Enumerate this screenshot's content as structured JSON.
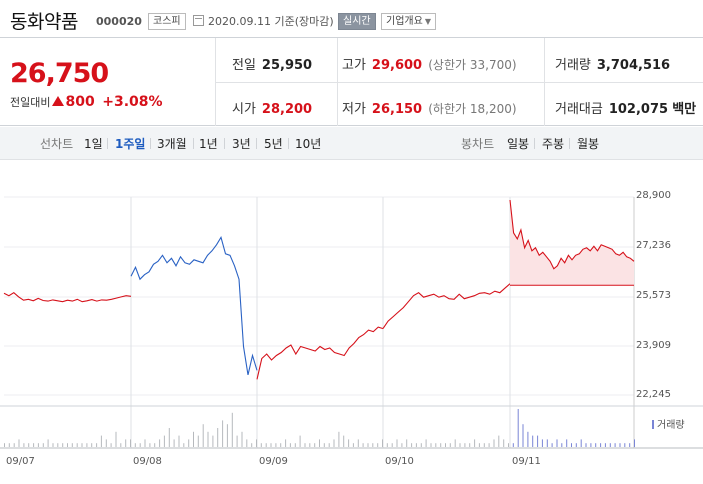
{
  "stock": {
    "name": "동화약품",
    "code": "000020",
    "market": "코스피",
    "date_text": "2020.09.11 기준(장마감)",
    "live_label": "실시간",
    "corp_label": "기업개요"
  },
  "summary": {
    "price": "26,750",
    "change_label": "전일대비",
    "change_value": "800",
    "change_pct": "+3.08%",
    "prev_label": "전일",
    "prev_value": "25,950",
    "open_label": "시가",
    "open_value": "28,200",
    "high_label": "고가",
    "high_value": "29,600",
    "upper_limit_prefix": "(상한가",
    "upper_limit_value": "33,700",
    "upper_limit_suffix": ")",
    "low_label": "저가",
    "low_value": "26,150",
    "lower_limit_prefix": "(하한가",
    "lower_limit_value": "18,200",
    "lower_limit_suffix": ")",
    "volume_label": "거래량",
    "volume_value": "3,704,516",
    "amount_label": "거래대금",
    "amount_value": "102,075",
    "amount_unit": "백만"
  },
  "tabs": {
    "line_chart_label": "선차트",
    "line_periods": [
      "1일",
      "1주일",
      "3개월",
      "1년",
      "3년",
      "5년",
      "10년"
    ],
    "active_period": "1주일",
    "candle_chart_label": "봉차트",
    "candle_periods": [
      "일봉",
      "주봉",
      "월봉"
    ]
  },
  "colors": {
    "up": "#d6111a",
    "down": "#2a62c4",
    "volume": "#7a85d6",
    "accent_tab": "#1d5bbf"
  },
  "chart_data": {
    "type": "line",
    "title": "",
    "yticks": [
      "28,900",
      "27,236",
      "25,573",
      "23,909",
      "22,245"
    ],
    "ylim": [
      22245,
      28900
    ],
    "xticks": [
      "09/07",
      "09/08",
      "09/09",
      "09/10",
      "09/11"
    ],
    "prev_close_reference": 25950,
    "volume_legend": "거래량",
    "series": [
      {
        "day": "09/07",
        "color": "up",
        "values": [
          25680,
          25600,
          25700,
          25560,
          25450,
          25480,
          25430,
          25510,
          25440,
          25420,
          25460,
          25430,
          25400,
          25450,
          25420,
          25480,
          25400,
          25430,
          25470,
          25420,
          25460,
          25450,
          25480,
          25520,
          25560,
          25600,
          25580
        ]
      },
      {
        "day": "09/08",
        "color": "down",
        "values": [
          26250,
          26550,
          26150,
          26300,
          26400,
          26650,
          26750,
          26950,
          26700,
          26850,
          26600,
          26900,
          26700,
          26650,
          26800,
          26750,
          26700,
          26950,
          27100,
          27300,
          27550,
          27000,
          26950,
          26600,
          26150,
          23900,
          22950,
          23600,
          23100
        ]
      },
      {
        "day": "09/09",
        "color": "up",
        "values": [
          22800,
          23500,
          23650,
          23450,
          23600,
          23700,
          23850,
          23950,
          23650,
          23900,
          23850,
          23800,
          23750,
          23900,
          23800,
          23850,
          23700,
          23650,
          23600,
          23850,
          24000,
          24200,
          24300,
          24450,
          24400,
          24550,
          24500
        ]
      },
      {
        "day": "09/10",
        "color": "up",
        "values": [
          24500,
          24750,
          24900,
          25050,
          25200,
          25400,
          25600,
          25700,
          25550,
          25600,
          25650,
          25550,
          25600,
          25500,
          25480,
          25650,
          25500,
          25550,
          25600,
          25680,
          25700,
          25650,
          25750,
          25700,
          25850,
          26000
        ]
      },
      {
        "day": "09/11",
        "color": "up",
        "values": [
          28800,
          27700,
          27500,
          27800,
          27200,
          27450,
          27100,
          27200,
          26950,
          27050,
          26900,
          26750,
          26500,
          26600,
          26850,
          26700,
          26950,
          26800,
          26950,
          27000,
          27150,
          27200,
          27100,
          27250,
          27100,
          27300,
          27250,
          27200,
          27150,
          27000,
          26950,
          27050,
          26900,
          26850,
          26750
        ]
      }
    ],
    "volume_levels": [
      1,
      1,
      1,
      2,
      1,
      1,
      1,
      1,
      1,
      2,
      1,
      1,
      1,
      1,
      1,
      1,
      1,
      1,
      1,
      1,
      3,
      2,
      1,
      4,
      1,
      2,
      2,
      1,
      1,
      2,
      1,
      1,
      2,
      3,
      5,
      2,
      3,
      1,
      2,
      4,
      3,
      6,
      4,
      3,
      5,
      7,
      6,
      9,
      3,
      4,
      2,
      1,
      2,
      1,
      1,
      1,
      1,
      1,
      2,
      1,
      1,
      3,
      1,
      1,
      1,
      2,
      1,
      1,
      2,
      4,
      3,
      2,
      1,
      2,
      1,
      1,
      1,
      1,
      2,
      1,
      1,
      2,
      1,
      2,
      1,
      1,
      1,
      2,
      1,
      1,
      1,
      1,
      1,
      2,
      1,
      1,
      1,
      2,
      1,
      1,
      1,
      2,
      3,
      2,
      1,
      1,
      10,
      6,
      4,
      3,
      3,
      2,
      2,
      1,
      2,
      1,
      2,
      1,
      1,
      2,
      1,
      1,
      1,
      1,
      1,
      1,
      1,
      1,
      1,
      1,
      2
    ]
  }
}
